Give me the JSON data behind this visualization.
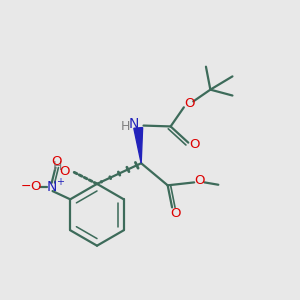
{
  "bg_color": "#e8e8e8",
  "bond_color": "#3d6b5a",
  "bond_width": 1.6,
  "atom_colors": {
    "O": "#dd0000",
    "N_amine": "#2222bb",
    "N_nitro": "#2222bb",
    "C": "#3d6b5a",
    "H": "#808080"
  },
  "figsize": [
    3.0,
    3.0
  ],
  "dpi": 100
}
